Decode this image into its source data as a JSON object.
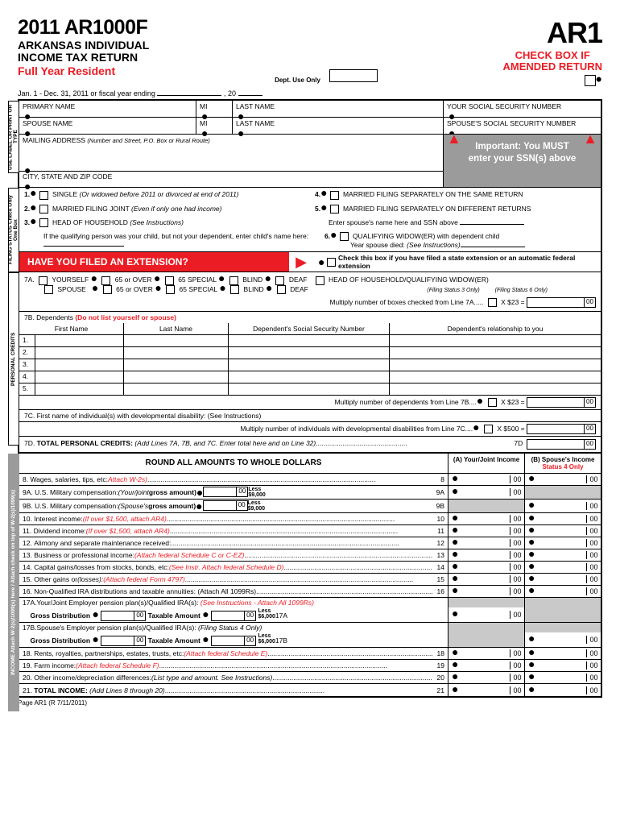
{
  "header": {
    "form_number": "2011 AR1000F",
    "title1": "ARKANSAS INDIVIDUAL",
    "title2": "INCOME TAX RETURN",
    "resident": "Full Year Resident",
    "short": "AR1",
    "amended1": "CHECK BOX IF",
    "amended2": "AMENDED RETURN",
    "dept_use": "Dept. Use Only",
    "date_line_prefix": "Jan. 1 - Dec. 31, 2011 or fiscal year ending",
    "date_line_year": ", 20"
  },
  "id_block": {
    "primary_name": "PRIMARY NAME",
    "mi": "MI",
    "last_name": "LAST NAME",
    "ssn": "YOUR SOCIAL SECURITY NUMBER",
    "spouse_name": "SPOUSE NAME",
    "spouse_ssn": "SPOUSE'S SOCIAL SECURITY NUMBER",
    "address": "MAILING ADDRESS",
    "address_note": "(Number and Street, P.O. Box or Rural Route)",
    "city": "CITY, STATE AND ZIP CODE",
    "callout1": "Important: You MUST",
    "callout2": "enter your SSN(s) above",
    "vtab": "USE LABEL OR PRINT OR TYPE"
  },
  "filing_status": {
    "vtab": "FILING STATUS Check Only One Box",
    "opt1": "SINGLE",
    "opt1_note": "(Or widowed before 2011 or divorced at end of 2011)",
    "opt2": "MARRIED FILING JOINT",
    "opt2_note": "(Even if only one had income)",
    "opt3": "HEAD OF HOUSEHOLD",
    "opt3_note": "(See Instructions)",
    "opt3_sub": "If the qualifying person was your child, but not your dependent, enter child's name here:",
    "opt4": "MARRIED FILING SEPARATELY ON THE SAME RETURN",
    "opt5": "MARRIED FILING SEPARATELY ON DIFFERENT RETURNS",
    "opt5_sub": "Enter spouse's name here and SSN above",
    "opt6": "QUALIFYING WIDOW(ER) with dependent child",
    "opt6_sub": "Year spouse died:",
    "opt6_sub2": "(See Instructions)"
  },
  "extension": {
    "bar": "HAVE YOU FILED AN EXTENSION?",
    "check_text": "Check this box if you have filed a state extension or an automatic federal extension"
  },
  "personal_credits": {
    "vtab": "PERSONAL CREDITS",
    "line7a_label": "7A.",
    "yourself": "YOURSELF",
    "spouse": "SPOUSE",
    "age": "65 or OVER",
    "special": "65 SPECIAL",
    "blind": "BLIND",
    "deaf": "DEAF",
    "hoh": "HEAD OF HOUSEHOLD/QUALIFYING WIDOW(ER)",
    "fs3": "(Filing Status 3 Only)",
    "fs6": "(Filing Status 6 Only)",
    "mult7a": "Multiply number of boxes checked from Line 7A.....",
    "x23": "X $23 =",
    "line7b_label": "7B. Dependents",
    "line7b_note": "(Do not list yourself or spouse)",
    "col_first": "First Name",
    "col_last": "Last Name",
    "col_ssn": "Dependent's Social Security Number",
    "col_rel": "Dependent's relationship to you",
    "mult7b": "Multiply number of dependents from Line 7B....",
    "line7c": "7C. First name of individual(s) with developmental disability: (See Instructions)",
    "mult7c": "Multiply number of individuals with developmental disabilities from Line 7C....",
    "x500": "X $500 =",
    "line7d_label": "7D.",
    "line7d_bold": "TOTAL PERSONAL CREDITS:",
    "line7d_text": "(Add Lines 7A, 7B, and 7C.  Enter total here and on Line 32)",
    "line7d_num": "7D"
  },
  "income": {
    "vtab": "INCOME  Attach W-2(s)/1099(s) here / Attach check on top of W-2(s)/1099(s)",
    "round": "ROUND ALL AMOUNTS TO WHOLE DOLLARS",
    "colA": "(A) Your/Joint Income",
    "colB1": "(B) Spouse's Income",
    "colB2": "Status 4 Only",
    "lines": [
      {
        "n": "8.",
        "t": "Wages, salaries, tips, etc:",
        "r": "Attach W-2s)",
        "num": "8",
        "a": true,
        "b": true
      },
      {
        "n": "9A.",
        "t": "U.S. Military compensation:",
        "i": "(Your/joint",
        "g": "gross amount)",
        "less": "Less $9,000",
        "num": "9A",
        "a": true,
        "b": false,
        "inline": true
      },
      {
        "n": "9B.",
        "t": "U.S. Military compensation:",
        "i": "(Spouse's",
        "g": "gross amount)",
        "less": "Less $9,000",
        "num": "9B",
        "a": false,
        "b": true,
        "inline": true
      },
      {
        "n": "10.",
        "t": "Interest income:",
        "r": "(If over $1,500, attach AR4)",
        "num": "10",
        "a": true,
        "b": true
      },
      {
        "n": "11.",
        "t": "Dividend income:",
        "r": "(If over $1,500, attach AR4)",
        "num": "11",
        "a": true,
        "b": true
      },
      {
        "n": "12.",
        "t": "Alimony and separate maintenance received:",
        "num": "12",
        "a": true,
        "b": true
      },
      {
        "n": "13.",
        "t": "Business or professional income:",
        "r": "(Attach federal Schedule C or C-EZ)",
        "num": "13",
        "a": true,
        "b": true
      },
      {
        "n": "14.",
        "t": "Capital gains/losses from stocks, bonds, etc:",
        "r": "(See Instr. Attach federal Schedule D)",
        "num": "14",
        "a": true,
        "b": true
      },
      {
        "n": "15.",
        "t": "Other gains or",
        "i2": "(losses):",
        "r": "(Attach federal Form 4797)",
        "num": "15",
        "a": true,
        "b": true
      },
      {
        "n": "16.",
        "t": "Non-Qualified IRA distributions and taxable annuities: (Attach All 1099Rs)",
        "num": "16",
        "a": true,
        "b": true
      }
    ],
    "line17a_label": "17A.Your/Joint Employer pension plan(s)/Qualified IRA(s):",
    "line17a_red": "(See Instructions - Attach All 1099Rs)",
    "line17b_label": "17B.Spouse's Employer pension plan(s)/Qualified IRA(s):",
    "line17b_i": "(Filing Status 4 Only)",
    "gross_dist": "Gross Distribution",
    "taxable_amt": "Taxable Amount",
    "less17a": "Less $6,000 17A",
    "less17b": "Less $6,000 17B",
    "lines2": [
      {
        "n": "18.",
        "t": "Rents, royalties, partnerships, estates, trusts, etc:",
        "r": "(Attach federal Schedule E)",
        "num": "18",
        "a": true,
        "b": true
      },
      {
        "n": "19.",
        "t": "Farm income:",
        "r": "(Attach federal Schedule F)",
        "num": "19",
        "a": true,
        "b": true
      },
      {
        "n": "20.",
        "t": "Other income/depreciation differences:",
        "i": "(List type and amount.  See Instructions)",
        "num": "20",
        "a": true,
        "b": true
      }
    ],
    "line21_n": "21.",
    "line21_bold": "TOTAL INCOME:",
    "line21_i": "(Add Lines 8 through 20)",
    "line21_num": "21"
  },
  "footer": "Page AR1 (R 7/11/2011)",
  "zeros": "00"
}
